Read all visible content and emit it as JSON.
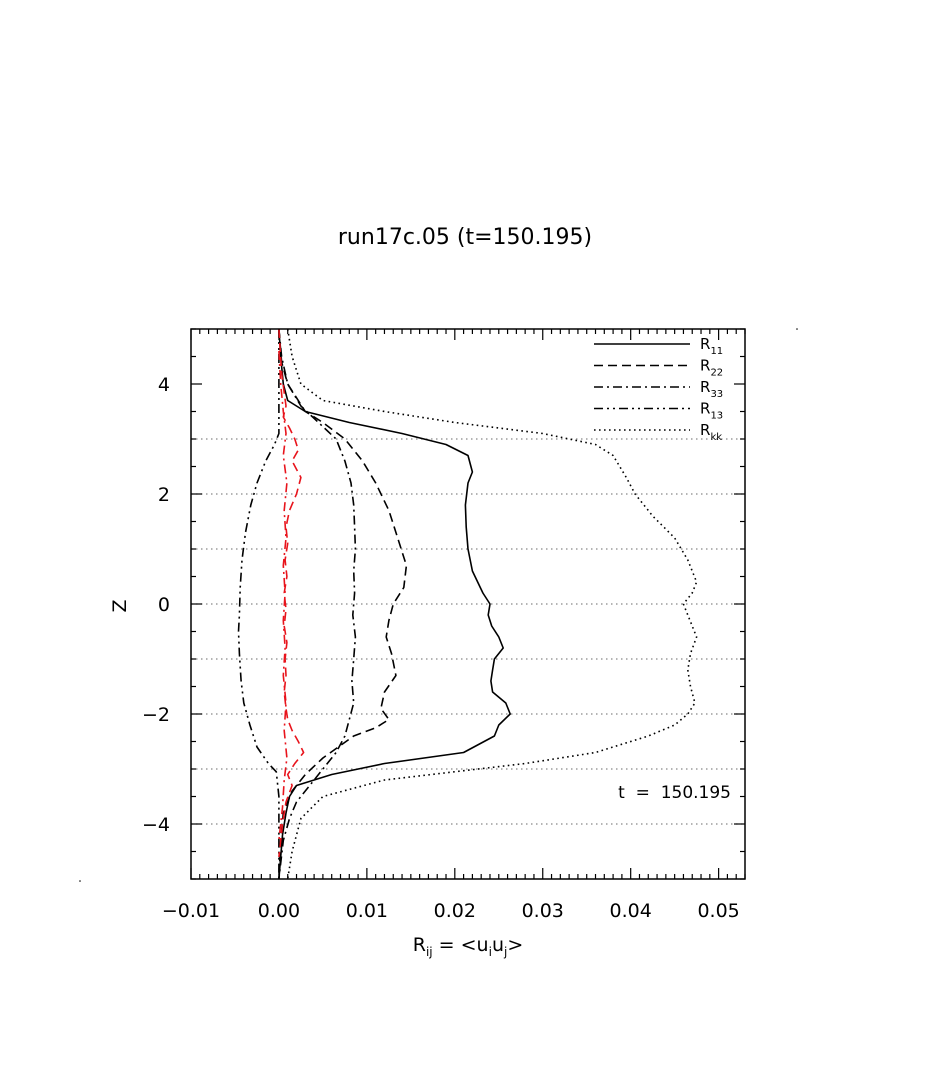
{
  "chart_data": {
    "type": "line",
    "title": "run17c.05 (t=150.195)",
    "xlabel": {
      "main": "R",
      "sub": "ij",
      "tail": " = <u",
      "s1": "i",
      "mid": "u",
      "s2": "j",
      "end": ">"
    },
    "ylabel": "Z",
    "xlim": [
      -0.01,
      0.053
    ],
    "ylim": [
      -5,
      5
    ],
    "xticks": [
      -0.01,
      0.0,
      0.01,
      0.02,
      0.03,
      0.04,
      0.05
    ],
    "xtick_labels": [
      "−0.01",
      "0.00",
      "0.01",
      "0.02",
      "0.03",
      "0.04",
      "0.05"
    ],
    "yticks": [
      -4,
      -2,
      0,
      2,
      4
    ],
    "ytick_labels": [
      "−4",
      "−2",
      "0",
      "2",
      "4"
    ],
    "grid_z": [
      -4,
      -3,
      -2,
      -1,
      0,
      1,
      2,
      3
    ],
    "annotation": "t  =  150.195",
    "legend_placement": "top-right",
    "colors": {
      "black": "#000000",
      "red": "#e8141c",
      "grid": "#888888"
    },
    "series": [
      {
        "name": "R",
        "sub": "11",
        "style": "solid",
        "color": "#000000",
        "x": [
          0.0,
          0.0002,
          0.0005,
          0.001,
          0.003,
          0.008,
          0.014,
          0.019,
          0.0215,
          0.022,
          0.0215,
          0.0212,
          0.0213,
          0.0215,
          0.022,
          0.0232,
          0.024,
          0.0238,
          0.0242,
          0.025,
          0.0255,
          0.0245,
          0.0243,
          0.0241,
          0.0243,
          0.0258,
          0.0263,
          0.025,
          0.0245,
          0.021,
          0.012,
          0.006,
          0.002,
          0.0012,
          0.0008,
          0.0004,
          0.0002,
          0.0
        ],
        "y": [
          5.0,
          4.5,
          4.0,
          3.7,
          3.5,
          3.3,
          3.1,
          2.9,
          2.7,
          2.4,
          2.2,
          1.8,
          1.4,
          1.0,
          0.6,
          0.2,
          0.0,
          -0.2,
          -0.4,
          -0.6,
          -0.8,
          -1.0,
          -1.2,
          -1.4,
          -1.6,
          -1.8,
          -2.0,
          -2.2,
          -2.4,
          -2.7,
          -2.9,
          -3.1,
          -3.3,
          -3.5,
          -3.8,
          -4.2,
          -4.6,
          -5.0
        ]
      },
      {
        "name": "R",
        "sub": "22",
        "style": "dashed",
        "color": "#000000",
        "x": [
          0.0,
          0.0003,
          0.001,
          0.003,
          0.005,
          0.0075,
          0.0095,
          0.011,
          0.0125,
          0.0135,
          0.0145,
          0.0142,
          0.013,
          0.0125,
          0.0122,
          0.0128,
          0.0133,
          0.012,
          0.0116,
          0.0125,
          0.011,
          0.0085,
          0.005,
          0.003,
          0.0015,
          0.0005,
          0.0002,
          0.0
        ],
        "y": [
          5.0,
          4.4,
          4.0,
          3.5,
          3.3,
          3.0,
          2.6,
          2.2,
          1.7,
          1.2,
          0.7,
          0.3,
          0.0,
          -0.3,
          -0.6,
          -0.9,
          -1.3,
          -1.6,
          -1.9,
          -2.1,
          -2.25,
          -2.4,
          -2.8,
          -3.1,
          -3.4,
          -3.8,
          -4.3,
          -5.0
        ]
      },
      {
        "name": "R",
        "sub": "33",
        "style": "dashdot",
        "color": "#000000",
        "x": [
          0.0,
          0.0003,
          0.001,
          0.0025,
          0.0045,
          0.0065,
          0.0075,
          0.0082,
          0.0085,
          0.0086,
          0.0087,
          0.0085,
          0.0086,
          0.0084,
          0.0087,
          0.0085,
          0.0083,
          0.0085,
          0.008,
          0.0075,
          0.0065,
          0.005,
          0.0035,
          0.002,
          0.0012,
          0.0005,
          0.0
        ],
        "y": [
          5.0,
          4.5,
          4.0,
          3.6,
          3.3,
          3.0,
          2.6,
          2.2,
          1.8,
          1.4,
          1.0,
          0.6,
          0.2,
          -0.2,
          -0.6,
          -1.0,
          -1.4,
          -1.8,
          -2.1,
          -2.4,
          -2.7,
          -3.0,
          -3.3,
          -3.6,
          -3.9,
          -4.3,
          -5.0
        ]
      },
      {
        "name": "R",
        "sub": "13",
        "style": "dashdotdot",
        "color": "#000000",
        "x": [
          0.0,
          0.0,
          0.0,
          -0.0005,
          -0.0015,
          -0.0025,
          -0.0032,
          -0.0038,
          -0.0042,
          -0.0044,
          -0.0045,
          -0.0046,
          -0.0045,
          -0.0043,
          -0.004,
          -0.0033,
          -0.0025,
          -0.0012,
          -0.0003,
          0.0,
          0.0
        ],
        "y": [
          5.0,
          4.0,
          3.1,
          2.9,
          2.6,
          2.2,
          1.8,
          1.3,
          0.8,
          0.3,
          -0.2,
          -0.5,
          -0.9,
          -1.4,
          -1.8,
          -2.2,
          -2.6,
          -2.9,
          -3.05,
          -3.5,
          -5.0
        ]
      },
      {
        "name": "R",
        "sub": "kk",
        "style": "dotted",
        "color": "#000000",
        "x": [
          0.001,
          0.0015,
          0.0025,
          0.005,
          0.012,
          0.02,
          0.03,
          0.036,
          0.038,
          0.0395,
          0.0405,
          0.0425,
          0.045,
          0.0465,
          0.0475,
          0.047,
          0.046,
          0.0465,
          0.0475,
          0.0468,
          0.0465,
          0.0468,
          0.0473,
          0.0465,
          0.045,
          0.042,
          0.036,
          0.028,
          0.012,
          0.005,
          0.0025,
          0.0015,
          0.001
        ],
        "y": [
          5.0,
          4.5,
          4.0,
          3.7,
          3.5,
          3.3,
          3.1,
          2.9,
          2.7,
          2.3,
          2.0,
          1.6,
          1.2,
          0.8,
          0.4,
          0.2,
          0.0,
          -0.2,
          -0.6,
          -0.9,
          -1.2,
          -1.5,
          -1.8,
          -2.0,
          -2.2,
          -2.4,
          -2.7,
          -2.9,
          -3.2,
          -3.5,
          -3.9,
          -4.5,
          -5.0
        ]
      },
      {
        "name": "",
        "style": "dashed",
        "color": "#e8141c",
        "x": [
          0.0,
          0.0003,
          0.0008,
          0.0005,
          0.0012,
          0.0018,
          0.0022,
          0.0015,
          0.0025,
          0.002,
          0.0012,
          0.0008,
          0.001,
          0.0007,
          0.0009,
          0.0006,
          0.0008,
          0.0006,
          0.0009,
          0.0007,
          0.0008,
          0.0006,
          0.0008,
          0.001,
          0.0015,
          0.0022,
          0.0028,
          0.0018,
          0.001,
          0.0015,
          0.0008,
          0.0004,
          0.0
        ],
        "y": [
          5.0,
          4.2,
          3.6,
          3.4,
          3.2,
          3.0,
          2.8,
          2.6,
          2.3,
          2.0,
          1.7,
          1.4,
          1.1,
          0.8,
          0.5,
          0.2,
          -0.1,
          -0.4,
          -0.7,
          -1.0,
          -1.3,
          -1.6,
          -1.9,
          -2.1,
          -2.3,
          -2.5,
          -2.7,
          -2.9,
          -3.1,
          -3.3,
          -3.6,
          -4.0,
          -4.6
        ]
      },
      {
        "name": "",
        "style": "dashdot",
        "color": "#e8141c",
        "x": [
          0.0,
          0.0002,
          0.0005,
          0.0008,
          0.0005,
          0.0009,
          0.0006,
          0.0008,
          0.0005,
          0.0007,
          0.0005,
          0.0007,
          0.0005,
          0.0008,
          0.0006,
          0.0009,
          0.0006,
          0.0004,
          0.0
        ],
        "y": [
          4.6,
          4.0,
          3.5,
          3.1,
          2.7,
          2.2,
          1.7,
          1.2,
          0.7,
          0.2,
          -0.3,
          -0.8,
          -1.3,
          -1.8,
          -2.3,
          -2.8,
          -3.2,
          -3.7,
          -4.3
        ]
      }
    ]
  }
}
